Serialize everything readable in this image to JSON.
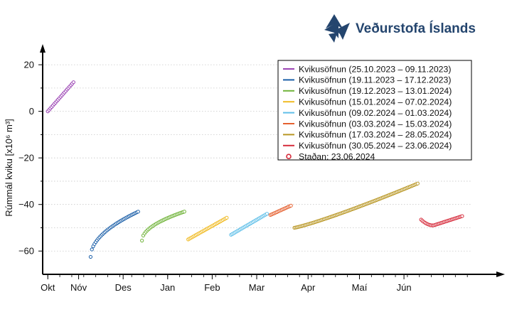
{
  "brand": {
    "name": "Veðurstofa Íslands",
    "color": "#24456e"
  },
  "chart_data": {
    "type": "scatter",
    "title": "",
    "xlabel": "",
    "ylabel": "Rúmmál kviku [x10⁶ m³]",
    "ylim": [
      -70,
      24
    ],
    "y_ticks": [
      20,
      0,
      -20,
      -40,
      -60
    ],
    "y_tick_labels": [
      "20",
      "0",
      "−20",
      "−40",
      "−60"
    ],
    "x_domain": [
      "2023-10-22",
      "2024-06-28"
    ],
    "x_ticks": [
      {
        "date": "2023-10-25",
        "label": "Okt"
      },
      {
        "date": "2023-11-12",
        "label": "Nóv"
      },
      {
        "date": "2023-12-08",
        "label": "Des"
      },
      {
        "date": "2024-01-03",
        "label": "Jan"
      },
      {
        "date": "2024-01-29",
        "label": "Feb"
      },
      {
        "date": "2024-02-24",
        "label": "Mar"
      },
      {
        "date": "2024-03-25",
        "label": "Apr"
      },
      {
        "date": "2024-04-24",
        "label": "Maí"
      },
      {
        "date": "2024-05-20",
        "label": "Jún"
      }
    ],
    "grid": "horizontal dotted",
    "legend_position": "top-right",
    "marker": "open-circle",
    "series": [
      {
        "name": "Kvikusöfnun (25.10.2023 – 09.11.2023)",
        "color": "#9b44b4",
        "start": "2023-10-25",
        "end": "2023-11-09",
        "y_start": 0,
        "y_end": 12.5,
        "shape": "linear"
      },
      {
        "name": "Kvikusöfnun (19.11.2023 – 17.12.2023)",
        "color": "#1b5fa8",
        "start": "2023-11-19",
        "end": "2023-12-17",
        "y_start": -62.5,
        "y_end": -43,
        "shape": "concave"
      },
      {
        "name": "Kvikusöfnun (19.12.2023 – 13.01.2024)",
        "color": "#71b43b",
        "start": "2023-12-19",
        "end": "2024-01-13",
        "y_start": -55.5,
        "y_end": -43,
        "shape": "concave"
      },
      {
        "name": "Kvikusöfnun (15.01.2024 – 07.02.2024)",
        "color": "#f0bb24",
        "start": "2024-01-15",
        "end": "2024-02-07",
        "y_start": -55,
        "y_end": -45.5,
        "shape": "linear"
      },
      {
        "name": "Kvikusöfnun (09.02.2024 – 01.03.2024)",
        "color": "#5fbfe8",
        "start": "2024-02-09",
        "end": "2024-03-01",
        "y_start": -53,
        "y_end": -44,
        "shape": "linear"
      },
      {
        "name": "Kvikusöfnun (03.03.2024 – 15.03.2024)",
        "color": "#e5602f",
        "start": "2024-03-03",
        "end": "2024-03-15",
        "y_start": -44.5,
        "y_end": -40.5,
        "shape": "linear"
      },
      {
        "name": "Kvikusöfnun (17.03.2024 – 28.05.2024)",
        "color": "#b89623",
        "start": "2024-03-17",
        "end": "2024-05-28",
        "y_start": -50,
        "y_end": -31,
        "shape": "convex"
      },
      {
        "name": "Kvikusöfnun (30.05.2024 – 23.06.2024)",
        "color": "#d62c3c",
        "start": "2024-05-30",
        "end": "2024-06-23",
        "y_start": -46.5,
        "y_end": -45,
        "shape": "dip",
        "y_min": -49
      }
    ],
    "latest_marker": {
      "label": "Staðan: 23.06.2024",
      "color": "#d62c3c"
    }
  }
}
